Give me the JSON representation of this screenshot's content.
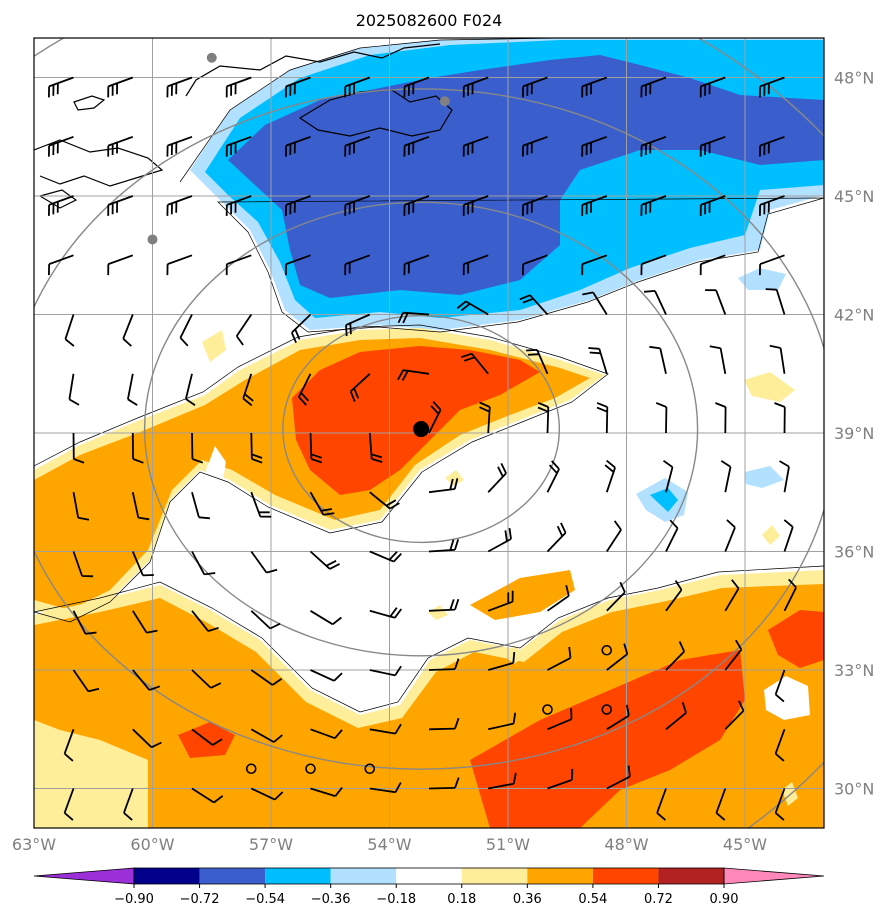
{
  "title": "2025082600 F024",
  "map": {
    "lon_range": [
      -63,
      -43
    ],
    "lat_range": [
      29,
      49
    ],
    "lat_ticks": [
      {
        "value": 48,
        "label": "48°N"
      },
      {
        "value": 45,
        "label": "45°N"
      },
      {
        "value": 42,
        "label": "42°N"
      },
      {
        "value": 39,
        "label": "39°N"
      },
      {
        "value": 36,
        "label": "36°N"
      },
      {
        "value": 33,
        "label": "33°N"
      },
      {
        "value": 30,
        "label": "30°N"
      }
    ],
    "lon_ticks": [
      {
        "value": -63,
        "label": "63°W"
      },
      {
        "value": -60,
        "label": "60°W"
      },
      {
        "value": -57,
        "label": "57°W"
      },
      {
        "value": -54,
        "label": "54°W"
      },
      {
        "value": -51,
        "label": "51°W"
      },
      {
        "value": -48,
        "label": "48°W"
      },
      {
        "value": -45,
        "label": "45°W"
      }
    ],
    "center": {
      "lon": -53.2,
      "lat": 39.1
    },
    "range_ring_radii_deg": [
      3.5,
      7.0,
      10.5
    ],
    "station_dots": [
      {
        "lon": -58.5,
        "lat": 48.5
      },
      {
        "lon": -52.6,
        "lat": 47.4
      },
      {
        "lon": -60.0,
        "lat": 43.9
      }
    ],
    "calm_circles": [
      {
        "lon": -57.5,
        "lat": 30.5
      },
      {
        "lon": -56.0,
        "lat": 30.5
      },
      {
        "lon": -54.5,
        "lat": 30.5
      },
      {
        "lon": -50.0,
        "lat": 32.0
      },
      {
        "lon": -48.5,
        "lat": 32.0
      },
      {
        "lon": -48.5,
        "lat": 33.5
      }
    ]
  },
  "colorbar": {
    "tick_labels": [
      "−0.90",
      "−0.72",
      "−0.54",
      "−0.36",
      "−0.18",
      "0.18",
      "0.36",
      "0.54",
      "0.72",
      "0.90"
    ],
    "colors": [
      "#9b30d9",
      "#00008b",
      "#3a5fcd",
      "#00bfff",
      "#b2e0ff",
      "#ffffff",
      "#ffee99",
      "#ffa500",
      "#ff4500",
      "#b22222",
      "#ff88bb"
    ]
  },
  "colors": {
    "grid": "#a0a0a0",
    "ring": "#888888",
    "blue_light": "#b2e0ff",
    "blue_mid": "#00bfff",
    "blue_dark": "#3a5fcd",
    "orange_light": "#ffee99",
    "orange_mid": "#ffa500",
    "orange_dark": "#ff4500"
  }
}
